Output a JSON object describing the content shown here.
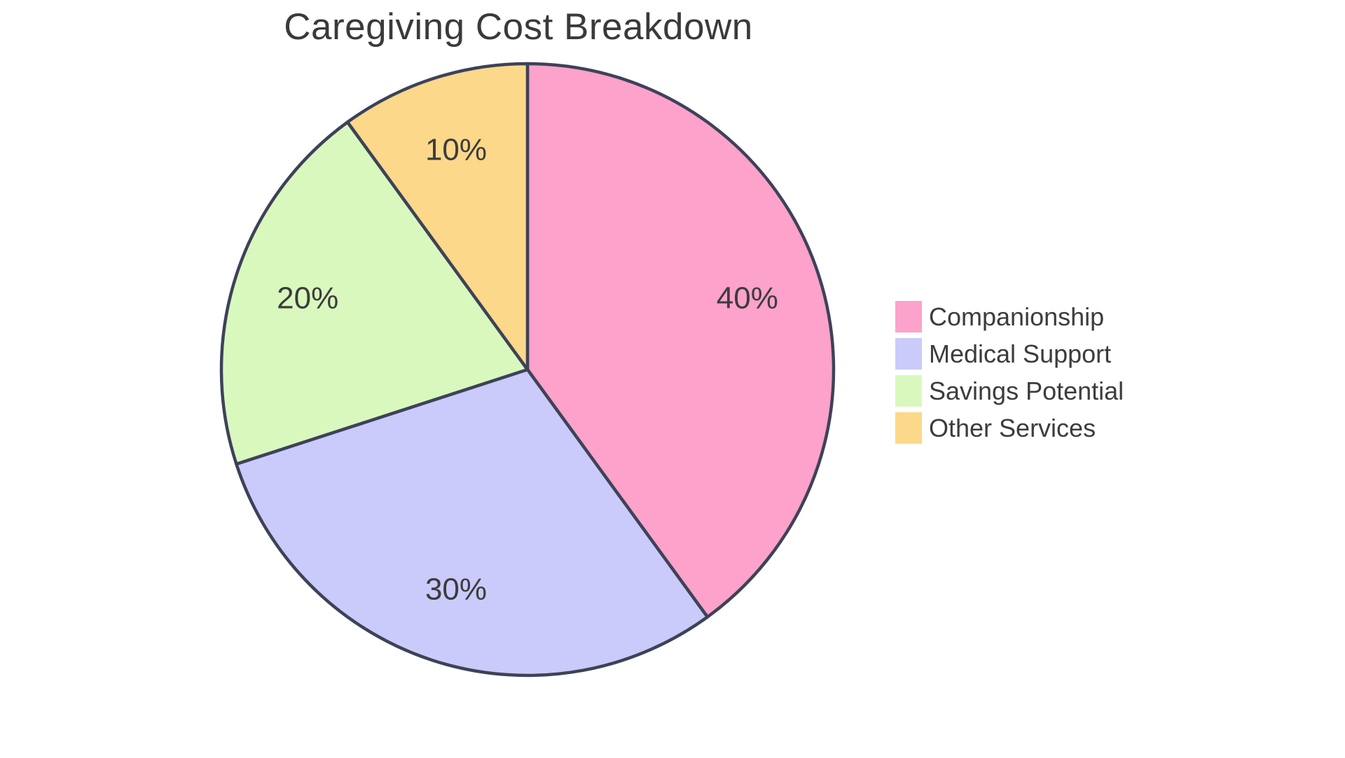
{
  "page": {
    "background_color": "#ffffff"
  },
  "chart_data": {
    "type": "pie",
    "title": "Caregiving Cost Breakdown",
    "labels": [
      "Companionship",
      "Medical Support",
      "Savings Potential",
      "Other Services"
    ],
    "values": [
      40,
      30,
      20,
      10
    ],
    "percent_labels": [
      "40%",
      "30%",
      "20%",
      "10%"
    ],
    "slice_colors": [
      "#FCA2CB",
      "#CACBFA",
      "#D9F8BE",
      "#FBD88A"
    ],
    "slice_edge_color": "#3E4258",
    "text_color": "#3C3C3C",
    "title_color": "#3A3A3A",
    "start_angle": "12 o'clock",
    "direction": "clockwise",
    "legend_position": "center-right",
    "legend_entries": [
      "Companionship",
      "Medical Support",
      "Savings Potential",
      "Other Services"
    ]
  }
}
